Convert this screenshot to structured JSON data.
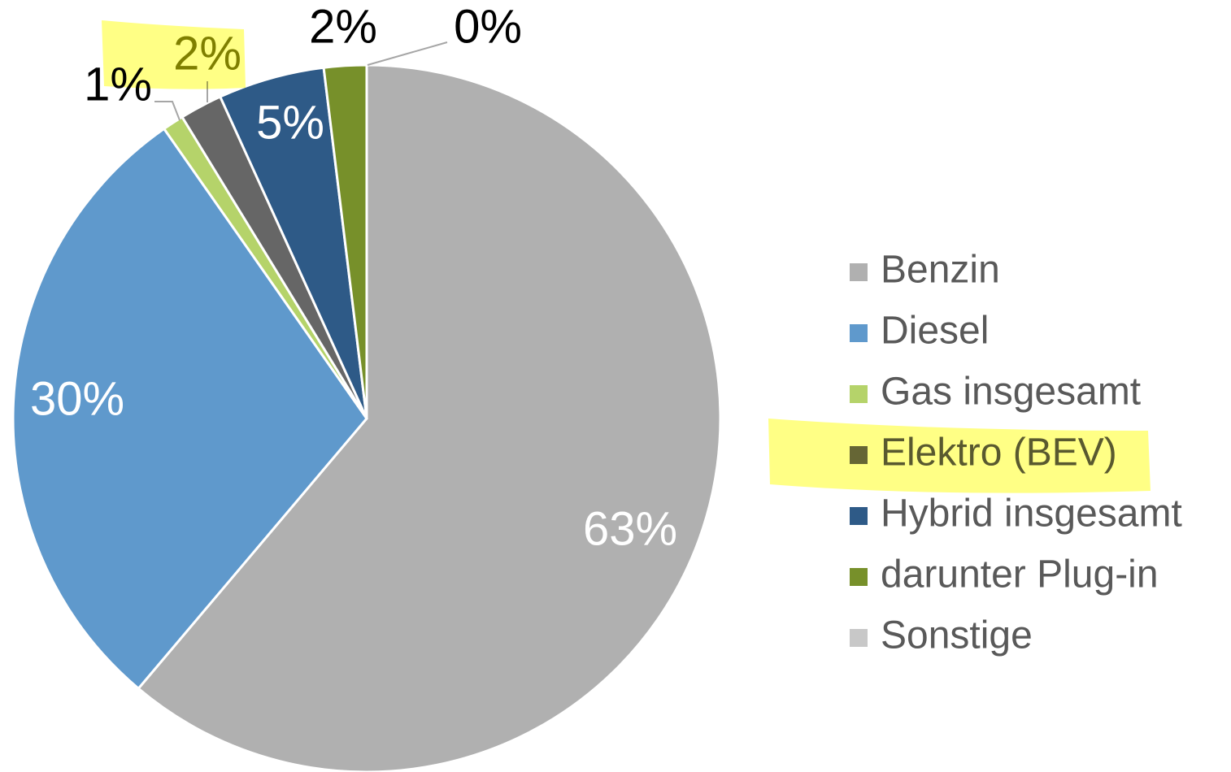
{
  "chart_data": {
    "type": "pie",
    "categories": [
      "Benzin",
      "Diesel",
      "Gas insgesamt",
      "Elektro (BEV)",
      "Hybrid insgesamt",
      "darunter Plug-in",
      "Sonstige"
    ],
    "values": [
      63,
      30,
      1,
      2,
      5,
      2,
      0
    ],
    "value_labels": [
      "63%",
      "30%",
      "1%",
      "2%",
      "5%",
      "2%",
      "0%"
    ],
    "colors": [
      "#b0b0b0",
      "#5f99cc",
      "#b5d36a",
      "#666666",
      "#2e5a87",
      "#77902a",
      "#c8c8c8"
    ],
    "legend": "right"
  }
}
